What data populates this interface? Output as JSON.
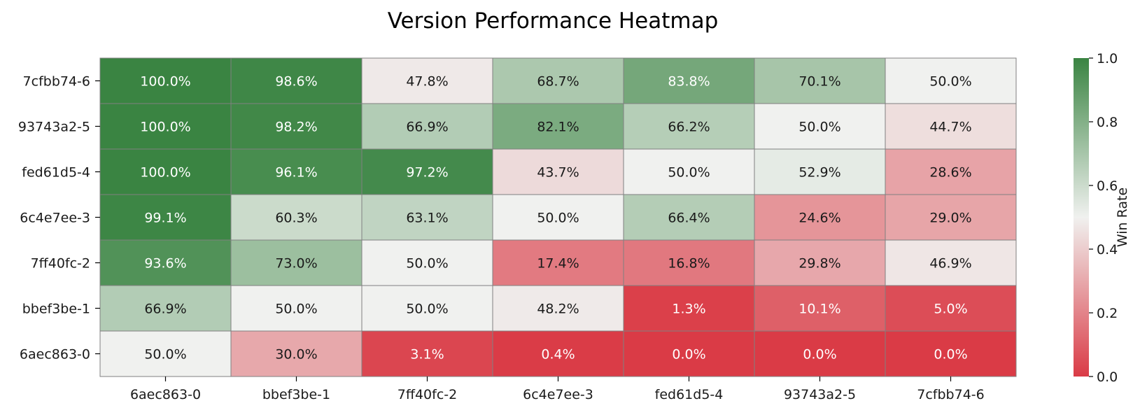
{
  "chart_data": {
    "type": "heatmap",
    "title": "Version Performance Heatmap",
    "xlabel": "",
    "ylabel": "",
    "x_categories": [
      "6aec863-0",
      "bbef3be-1",
      "7ff40fc-2",
      "6c4e7ee-3",
      "fed61d5-4",
      "93743a2-5",
      "7cfbb74-6"
    ],
    "y_categories": [
      "7cfbb74-6",
      "93743a2-5",
      "fed61d5-4",
      "6c4e7ee-3",
      "7ff40fc-2",
      "bbef3be-1",
      "6aec863-0"
    ],
    "values": [
      [
        100.0,
        98.6,
        47.8,
        68.7,
        83.8,
        70.1,
        50.0
      ],
      [
        100.0,
        98.2,
        66.9,
        82.1,
        66.2,
        50.0,
        44.7
      ],
      [
        100.0,
        96.1,
        97.2,
        43.7,
        50.0,
        52.9,
        28.6
      ],
      [
        99.1,
        60.3,
        63.1,
        50.0,
        66.4,
        24.6,
        29.0
      ],
      [
        93.6,
        73.0,
        50.0,
        17.4,
        16.8,
        29.8,
        46.9
      ],
      [
        66.9,
        50.0,
        50.0,
        48.2,
        1.3,
        10.1,
        5.0
      ],
      [
        50.0,
        30.0,
        3.1,
        0.4,
        0.0,
        0.0,
        0.0
      ]
    ],
    "value_suffix": "%",
    "colorbar": {
      "label": "Win Rate",
      "range": [
        0.0,
        1.0
      ],
      "ticks": [
        "0.0",
        "0.2",
        "0.4",
        "0.6",
        "0.8",
        "1.0"
      ]
    },
    "colors": {
      "low": "#da3b46",
      "mid": "#f0f1ef",
      "high": "#3a8442",
      "grid_line": "#808080",
      "dark_text": "#1a1a1a",
      "light_text": "#ffffff"
    }
  }
}
